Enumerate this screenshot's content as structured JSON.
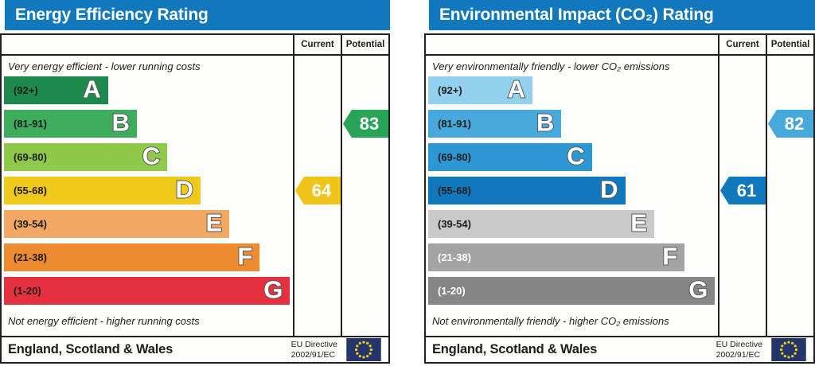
{
  "chart_data": [
    {
      "type": "bar",
      "panel_name": "energy-efficiency-rating-panel",
      "title": "Energy Efficiency Rating",
      "header_bg": "#1278bd",
      "col_headers": [
        "Current",
        "Potential"
      ],
      "top_note": "Very energy efficient - lower running costs",
      "bottom_note": "Not energy efficient - higher running costs",
      "bands": [
        {
          "letter": "A",
          "range": "(92+)",
          "color": "#1d8a4d",
          "text_color": "#1d1d1b",
          "width_pct": 36
        },
        {
          "letter": "B",
          "range": "(81-91)",
          "color": "#3dac5c",
          "text_color": "#1d1d1b",
          "width_pct": 46
        },
        {
          "letter": "C",
          "range": "(69-80)",
          "color": "#8ec949",
          "text_color": "#1d1d1b",
          "width_pct": 56.5
        },
        {
          "letter": "D",
          "range": "(55-68)",
          "color": "#f0ca1b",
          "text_color": "#1d1d1b",
          "width_pct": 68
        },
        {
          "letter": "E",
          "range": "(39-54)",
          "color": "#f2a862",
          "text_color": "#1d1d1b",
          "width_pct": 78
        },
        {
          "letter": "F",
          "range": "(21-38)",
          "color": "#ee8b31",
          "text_color": "#1d1d1b",
          "width_pct": 88.5
        },
        {
          "letter": "G",
          "range": "(1-20)",
          "color": "#e5303f",
          "text_color": "#1d1d1b",
          "width_pct": 99
        }
      ],
      "current": {
        "value": 64,
        "band": "D",
        "row": 3,
        "color": "#f0c41b"
      },
      "potential": {
        "value": 83,
        "band": "B",
        "row": 1,
        "color": "#28a457"
      },
      "footer": {
        "region": "England, Scotland & Wales",
        "directive_line1": "EU Directive",
        "directive_line2": "2002/91/EC"
      },
      "eu_flag": {
        "bg": "#24356b",
        "stars": "#f7d117"
      }
    },
    {
      "type": "bar",
      "panel_name": "environmental-impact-co2-rating-panel",
      "title": "Environmental Impact (CO₂) Rating",
      "header_bg": "#1278bd",
      "col_headers": [
        "Current",
        "Potential"
      ],
      "top_note": "Very environmentally friendly - lower CO₂ emissions",
      "bottom_note": "Not environmentally friendly - higher CO₂ emissions",
      "bands": [
        {
          "letter": "A",
          "range": "(92+)",
          "color": "#93d0ee",
          "text_color": "#1d1d1b",
          "width_pct": 36
        },
        {
          "letter": "B",
          "range": "(81-91)",
          "color": "#47a8dc",
          "text_color": "#1d1d1b",
          "width_pct": 46
        },
        {
          "letter": "C",
          "range": "(69-80)",
          "color": "#2c97d2",
          "text_color": "#1d1d1b",
          "width_pct": 56.5
        },
        {
          "letter": "D",
          "range": "(55-68)",
          "color": "#1278bd",
          "text_color": "#1d1d1b",
          "width_pct": 68
        },
        {
          "letter": "E",
          "range": "(39-54)",
          "color": "#c9c9c9",
          "text_color": "#1d1d1b",
          "width_pct": 78
        },
        {
          "letter": "F",
          "range": "(21-38)",
          "color": "#a3a3a3",
          "text_color": "#ffffff",
          "width_pct": 88.5
        },
        {
          "letter": "G",
          "range": "(1-20)",
          "color": "#868686",
          "text_color": "#ffffff",
          "width_pct": 99
        }
      ],
      "current": {
        "value": 61,
        "band": "D",
        "row": 3,
        "color": "#1278bd"
      },
      "potential": {
        "value": 82,
        "band": "B",
        "row": 1,
        "color": "#47a8dc"
      },
      "footer": {
        "region": "England, Scotland & Wales",
        "directive_line1": "EU Directive",
        "directive_line2": "2002/91/EC"
      },
      "eu_flag": {
        "bg": "#24356b",
        "stars": "#f7d117"
      }
    }
  ]
}
